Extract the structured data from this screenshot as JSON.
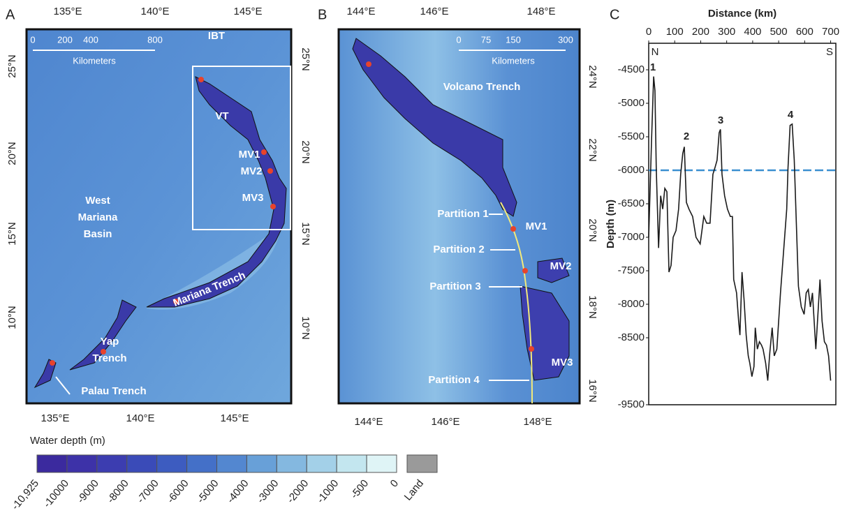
{
  "panel_a": {
    "letter": "A",
    "top_ticks": [
      "135°E",
      "140°E",
      "145°E"
    ],
    "bottom_ticks": [
      "135°E",
      "140°E",
      "145°E"
    ],
    "left_ticks": [
      "25°N",
      "20°N",
      "15°N",
      "10°N"
    ],
    "right_ticks": [
      "25°N",
      "20°N",
      "15°N",
      "10°N"
    ],
    "scale_labels": [
      "0",
      "200",
      "400",
      "800"
    ],
    "scale_unit": "Kilometers",
    "labels": [
      "IBT",
      "VT",
      "MV1",
      "MV2",
      "MV3",
      "West",
      "Mariana",
      "Basin",
      "Mariana Trench",
      "Yap",
      "Trench",
      "Palau Trench"
    ]
  },
  "panel_b": {
    "letter": "B",
    "top_ticks": [
      "144°E",
      "146°E",
      "148°E"
    ],
    "bottom_ticks": [
      "144°E",
      "146°E",
      "148°E"
    ],
    "right_ticks": [
      "24°N",
      "22°N",
      "20°N",
      "18°N",
      "16°N"
    ],
    "scale_labels": [
      "0",
      "75",
      "150",
      "300"
    ],
    "scale_unit": "Kilometers",
    "labels": [
      "Volcano Trench",
      "Partition 1",
      "MV1",
      "Partition 2",
      "MV2",
      "Partition 3",
      "MV3",
      "Partition 4"
    ]
  },
  "legend": {
    "title": "Water depth (m)",
    "labels": [
      "-10,925",
      "-10000",
      "-9000",
      "-8000",
      "-7000",
      "-6000",
      "-5000",
      "-4000",
      "-3000",
      "-2000",
      "-1000",
      "-500",
      "0"
    ],
    "colors": [
      "#3b2a9e",
      "#3d32a8",
      "#3c3db0",
      "#3a4bb8",
      "#3d5cc0",
      "#4470c8",
      "#5387d0",
      "#68a0d8",
      "#84b8e0",
      "#a3d0e8",
      "#c3e6ef",
      "#dff4f6"
    ],
    "land": "Land",
    "land_color": "#9a9a9a"
  },
  "chart_data": {
    "type": "line",
    "letter": "C",
    "x_label": "Distance (km)",
    "y_label": "Depth (m)",
    "end_labels": [
      "N",
      "S"
    ],
    "annotations": [
      "1",
      "2",
      "3",
      "4"
    ],
    "x": [
      0,
      11,
      19,
      24,
      29,
      38,
      46,
      54,
      62,
      70,
      78,
      86,
      94,
      105,
      115,
      123,
      131,
      137,
      145,
      155,
      169,
      182,
      198,
      212,
      223,
      236,
      247,
      255,
      263,
      271,
      276,
      282,
      292,
      303,
      314,
      322,
      327,
      338,
      346,
      351,
      359,
      367,
      375,
      383,
      389,
      397,
      405,
      410,
      418,
      426,
      434,
      440,
      450,
      458,
      466,
      475,
      483,
      493,
      507,
      517,
      531,
      536,
      544,
      552,
      560,
      568,
      576,
      587,
      598,
      606,
      614,
      622,
      630,
      635,
      643,
      651,
      659,
      667,
      676,
      684,
      692,
      700
    ],
    "values": [
      -7000,
      -5540,
      -4600,
      -4810,
      -5960,
      -7160,
      -6380,
      -6580,
      -6270,
      -6320,
      -7520,
      -7420,
      -7000,
      -6900,
      -6580,
      -6060,
      -5750,
      -5650,
      -6480,
      -6580,
      -6690,
      -7000,
      -7100,
      -6690,
      -6790,
      -6790,
      -6060,
      -5960,
      -5850,
      -5440,
      -5390,
      -6060,
      -6380,
      -6580,
      -6690,
      -6690,
      -7630,
      -7830,
      -8250,
      -8460,
      -7520,
      -7940,
      -8460,
      -8770,
      -8880,
      -9080,
      -8930,
      -8350,
      -8670,
      -8560,
      -8610,
      -8670,
      -8880,
      -9140,
      -8720,
      -8350,
      -8770,
      -8670,
      -7830,
      -7310,
      -6580,
      -5960,
      -5330,
      -5310,
      -5850,
      -6790,
      -7730,
      -8040,
      -8150,
      -7830,
      -7780,
      -8040,
      -7830,
      -8150,
      -8670,
      -8150,
      -7630,
      -8250,
      -8560,
      -8610,
      -8770,
      -9140
    ],
    "color": "#1a1a1a",
    "xlim": [
      0,
      720
    ],
    "ylim": [
      -9500,
      -4104
    ],
    "xticks": [
      0,
      100,
      200,
      300,
      400,
      500,
      600,
      700
    ],
    "yticks": [
      -4500,
      -5000,
      -5500,
      -6000,
      -6500,
      -7000,
      -7500,
      -8000,
      -8500,
      -9500
    ],
    "reference_line": -6000,
    "reference_color": "#3b8fd0"
  }
}
